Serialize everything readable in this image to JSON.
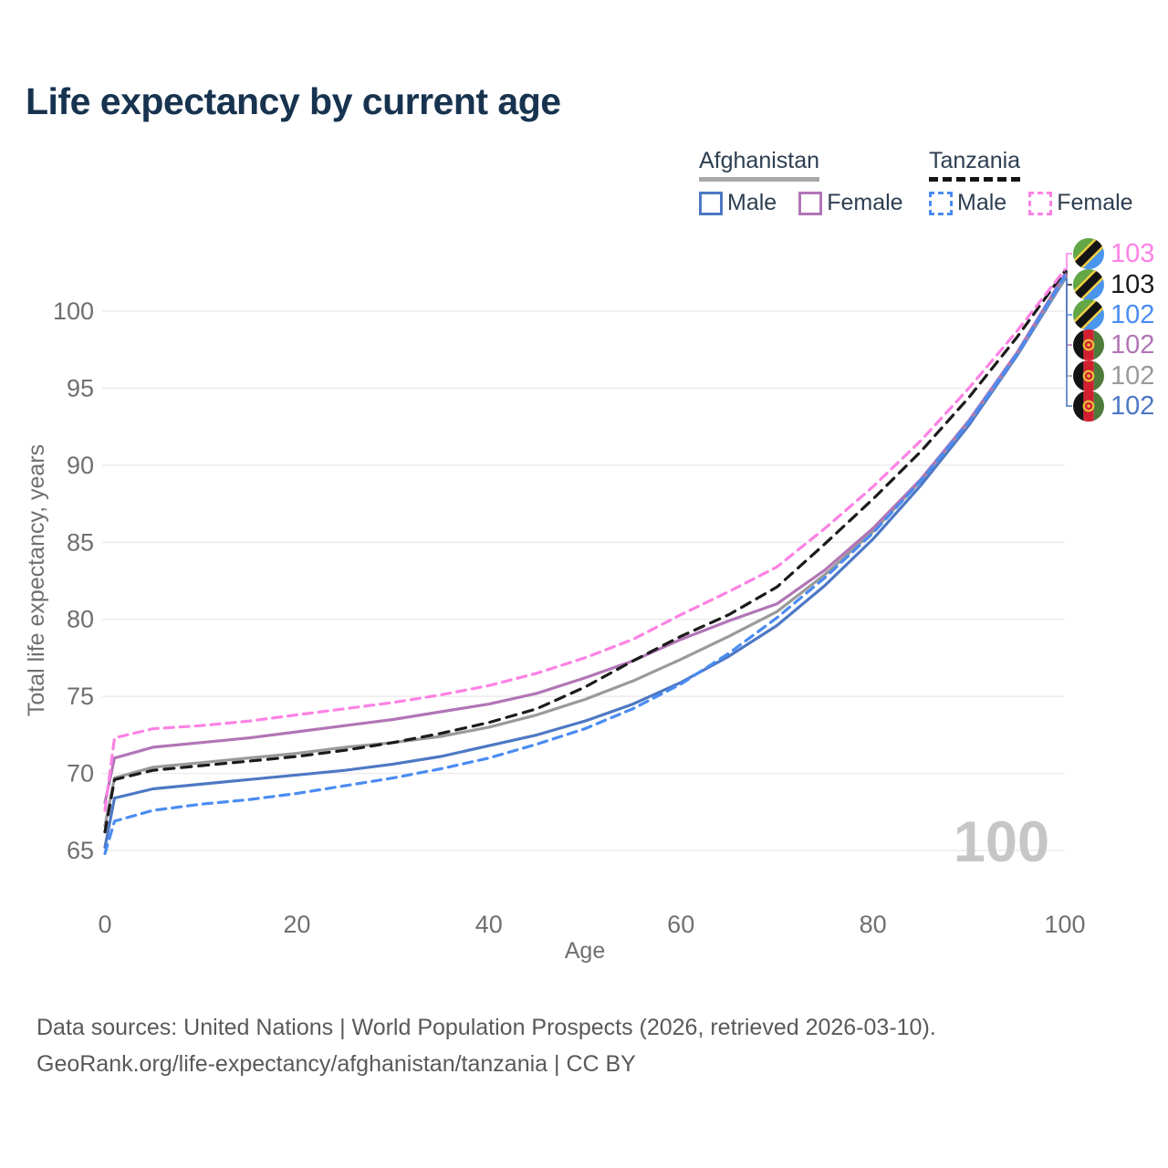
{
  "header": {
    "title": "Life expectancy by current age"
  },
  "legend": {
    "groups": [
      {
        "country": "Afghanistan",
        "line_style": "solid",
        "items": [
          {
            "label": "Male",
            "color": "#4d78c4",
            "dashed": false
          },
          {
            "label": "Female",
            "color": "#b175b6",
            "dashed": false
          }
        ]
      },
      {
        "country": "Tanzania",
        "line_style": "dashed",
        "items": [
          {
            "label": "Male",
            "color": "#4a8cf2",
            "dashed": true
          },
          {
            "label": "Female",
            "color": "#fd82e4",
            "dashed": true
          }
        ]
      }
    ]
  },
  "chart_data": {
    "type": "line",
    "title": "Life expectancy by current age",
    "xlabel": "Age",
    "ylabel": "Total life expectancy, years",
    "xlim": [
      0,
      100
    ],
    "ylim": [
      63,
      104
    ],
    "xticks": [
      0,
      20,
      40,
      60,
      80,
      100
    ],
    "yticks": [
      65,
      70,
      75,
      80,
      85,
      90,
      95,
      100
    ],
    "grid": "horizontal",
    "age_watermark": "100",
    "x": [
      0,
      1,
      5,
      10,
      15,
      20,
      25,
      30,
      35,
      40,
      45,
      50,
      55,
      60,
      65,
      70,
      75,
      80,
      85,
      90,
      95,
      100
    ],
    "series": [
      {
        "name": "Tanzania Female",
        "country": "Tanzania",
        "sex": "Female",
        "color": "#fd82e4",
        "dash": "10 7",
        "end_label": "103",
        "values": [
          67.6,
          72.3,
          72.9,
          73.1,
          73.4,
          73.8,
          74.2,
          74.6,
          75.1,
          75.7,
          76.5,
          77.5,
          78.7,
          80.3,
          81.8,
          83.4,
          85.9,
          88.6,
          91.6,
          95.0,
          98.7,
          102.7
        ]
      },
      {
        "name": "Tanzania Both sexes",
        "country": "Tanzania",
        "sex": "Both",
        "color": "#1b1b1b",
        "dash": "11 8",
        "end_label": "103",
        "values": [
          66.2,
          69.6,
          70.2,
          70.5,
          70.8,
          71.1,
          71.5,
          72.0,
          72.6,
          73.3,
          74.2,
          75.6,
          77.3,
          78.9,
          80.3,
          82.1,
          84.9,
          87.8,
          90.9,
          94.4,
          98.3,
          102.6
        ]
      },
      {
        "name": "Tanzania Male",
        "country": "Tanzania",
        "sex": "Male",
        "color": "#4a8cf2",
        "dash": "10 7",
        "end_label": "102",
        "values": [
          64.8,
          66.9,
          67.6,
          68.0,
          68.3,
          68.7,
          69.2,
          69.7,
          70.3,
          71.0,
          71.9,
          72.9,
          74.2,
          75.8,
          77.8,
          80.1,
          82.7,
          85.6,
          89.0,
          92.8,
          97.2,
          102.3
        ]
      },
      {
        "name": "Afghanistan Female",
        "country": "Afghanistan",
        "sex": "Female",
        "color": "#b175b6",
        "dash": null,
        "end_label": "102",
        "values": [
          68.1,
          71.0,
          71.7,
          72.0,
          72.3,
          72.7,
          73.1,
          73.5,
          74.0,
          74.5,
          75.2,
          76.2,
          77.3,
          78.7,
          79.9,
          81.0,
          83.2,
          85.9,
          89.1,
          92.9,
          97.3,
          102.4
        ]
      },
      {
        "name": "Afghanistan Both sexes",
        "country": "Afghanistan",
        "sex": "Both",
        "color": "#9a9a9a",
        "dash": null,
        "end_label": "102",
        "values": [
          66.6,
          69.7,
          70.4,
          70.7,
          71.0,
          71.3,
          71.7,
          72.0,
          72.4,
          73.0,
          73.8,
          74.8,
          76.0,
          77.4,
          78.9,
          80.5,
          82.9,
          85.7,
          89.0,
          92.8,
          97.2,
          102.2
        ]
      },
      {
        "name": "Afghanistan Male",
        "country": "Afghanistan",
        "sex": "Male",
        "color": "#4d78c4",
        "dash": null,
        "end_label": "102",
        "values": [
          65.2,
          68.4,
          69.0,
          69.3,
          69.6,
          69.9,
          70.2,
          70.6,
          71.1,
          71.8,
          72.5,
          73.4,
          74.5,
          75.9,
          77.6,
          79.6,
          82.2,
          85.2,
          88.7,
          92.6,
          97.1,
          102.1
        ]
      }
    ],
    "colors": {
      "grid": "#ebebeb",
      "axis_text": "#6f6f6f",
      "watermark": "#c6c6c6"
    }
  },
  "footer": {
    "line1": "Data sources: United Nations | World Population Prospects (2026, retrieved 2026-03-10).",
    "line2": "GeoRank.org/life-expectancy/afghanistan/tanzania | CC BY"
  }
}
